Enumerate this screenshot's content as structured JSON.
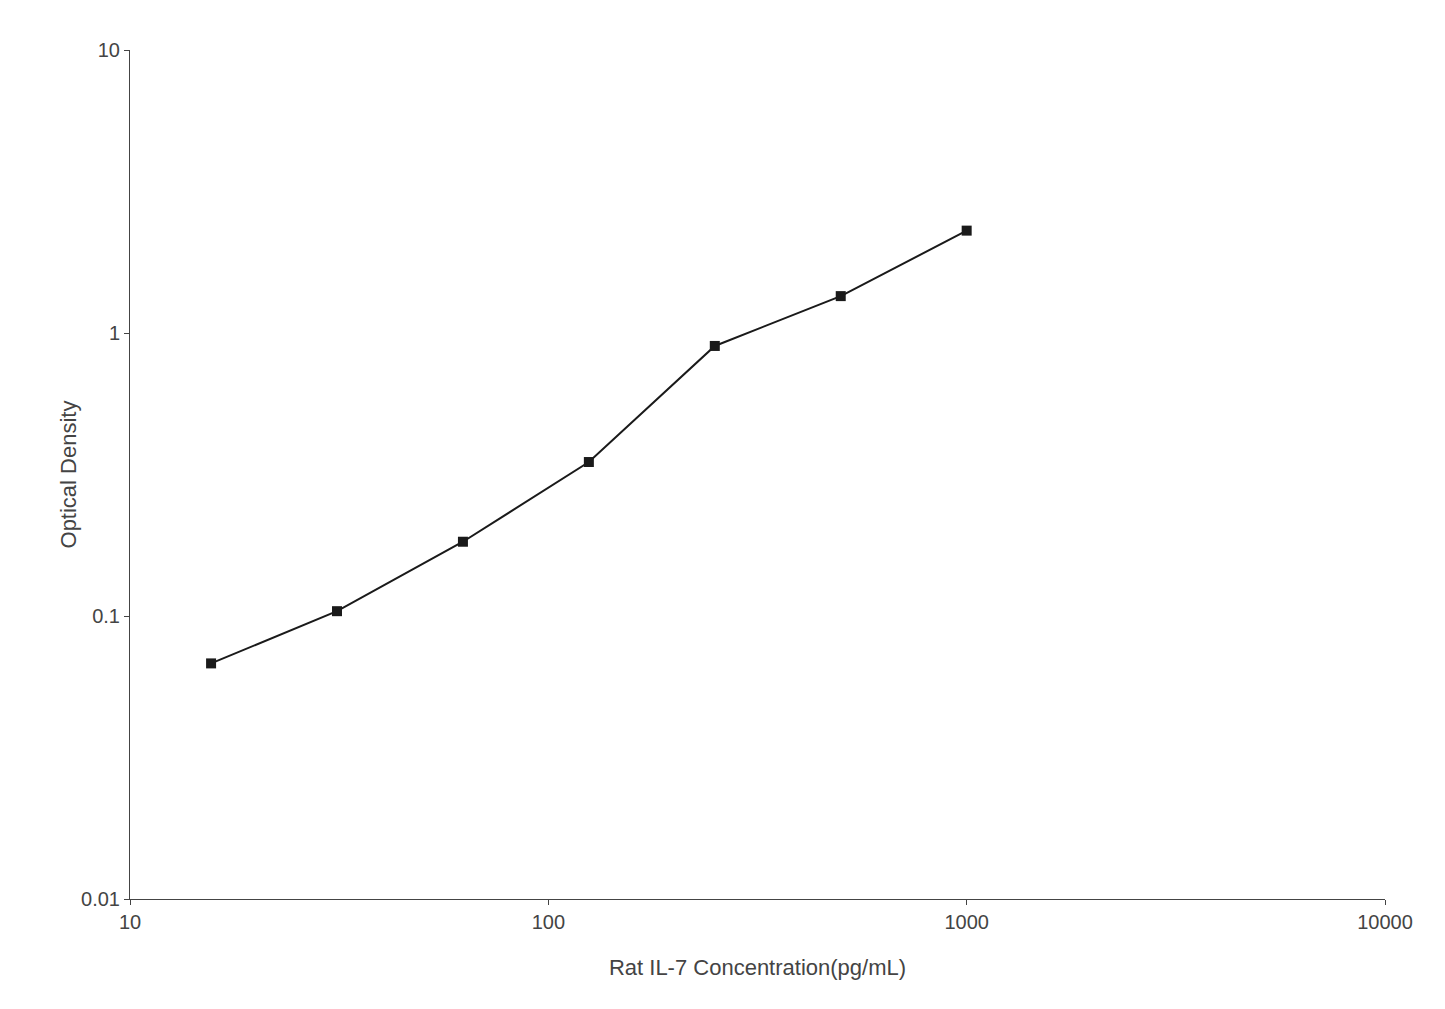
{
  "chart_data": {
    "type": "line",
    "x": [
      15.625,
      31.25,
      62.5,
      125,
      250,
      500,
      1000
    ],
    "values": [
      0.068,
      0.104,
      0.183,
      0.35,
      0.9,
      1.35,
      2.3
    ],
    "xlabel": "Rat IL-7 Concentration(pg/mL)",
    "ylabel": "Optical Density",
    "xlim": [
      10,
      10000
    ],
    "ylim": [
      0.01,
      10
    ],
    "xticks": [
      10,
      100,
      1000,
      10000
    ],
    "yticks": [
      0.01,
      0.1,
      1,
      10
    ],
    "log": true,
    "grid": false,
    "color": "#1a1a1a",
    "marker": "square",
    "line_style": "solid"
  }
}
